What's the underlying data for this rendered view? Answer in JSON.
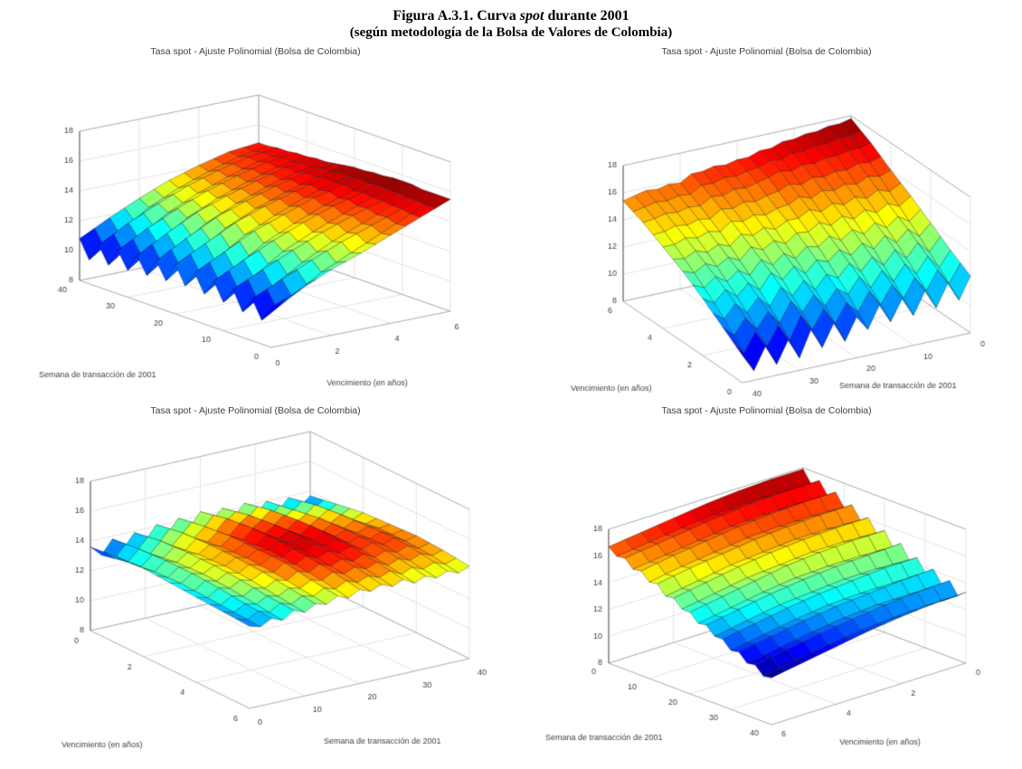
{
  "page": {
    "title_prefix": "Figura A.3.1. Curva ",
    "title_italic": "spot",
    "title_suffix": " durante 2001",
    "subtitle": "(según metodología de la Bolsa de Valores de Colombia)"
  },
  "chart_data": [
    {
      "type": "surface",
      "position": "top-left",
      "title": "Tasa spot - Ajuste Polinomial (Bolsa de Colombia)",
      "xlabel": "Semana de transacción de 2001",
      "ylabel": "Vencimiento (en años)",
      "colormap": "jet",
      "x_range": [
        0,
        40
      ],
      "y_range": [
        0,
        6
      ],
      "z_range": [
        8,
        18
      ],
      "x_ticks": [
        0,
        10,
        20,
        30,
        40
      ],
      "y_ticks": [
        0,
        2,
        4,
        6
      ],
      "z_ticks": [
        8,
        10,
        12,
        14,
        16,
        18
      ],
      "view_front_corner": {
        "week": 0,
        "maturity": 0
      },
      "weeks": [
        0,
        2,
        4,
        6,
        8,
        10,
        12,
        14,
        16,
        18,
        20,
        22,
        24,
        26,
        28,
        30,
        32,
        34,
        36,
        38,
        40
      ],
      "maturities": [
        0,
        1,
        2,
        3,
        4,
        5,
        6
      ],
      "z_grid": [
        [
          10.7,
          11.5,
          12.4,
          13.1,
          13.9,
          14.7,
          15.5
        ],
        [
          9.6,
          10.8,
          12.0,
          12.9,
          13.8,
          14.7,
          15.5
        ],
        [
          10.8,
          11.7,
          12.6,
          13.4,
          14.1,
          14.8,
          15.5
        ],
        [
          9.7,
          11.0,
          12.2,
          13.2,
          14.0,
          14.8,
          15.5
        ],
        [
          11.0,
          11.9,
          12.8,
          13.6,
          14.3,
          14.9,
          15.6
        ],
        [
          9.9,
          11.2,
          12.5,
          13.4,
          14.2,
          14.9,
          15.6
        ],
        [
          11.1,
          12.1,
          13.0,
          13.8,
          14.5,
          15.0,
          15.6
        ],
        [
          10.0,
          11.3,
          12.6,
          13.5,
          14.3,
          14.9,
          15.5
        ],
        [
          11.2,
          12.2,
          13.2,
          13.9,
          14.6,
          15.1,
          15.5
        ],
        [
          10.1,
          11.4,
          12.7,
          13.6,
          14.4,
          15.0,
          15.4
        ],
        [
          11.3,
          12.3,
          13.3,
          14.0,
          14.6,
          15.1,
          15.4
        ],
        [
          10.0,
          11.4,
          12.7,
          13.6,
          14.3,
          14.9,
          15.3
        ],
        [
          11.1,
          12.2,
          13.2,
          13.9,
          14.5,
          15.0,
          15.2
        ],
        [
          9.9,
          11.3,
          12.6,
          13.5,
          14.2,
          14.8,
          15.1
        ],
        [
          11.0,
          12.1,
          13.1,
          13.8,
          14.4,
          14.9,
          15.1
        ],
        [
          9.8,
          11.2,
          12.5,
          13.4,
          14.1,
          14.7,
          15.0
        ],
        [
          10.9,
          12.0,
          12.9,
          13.7,
          14.3,
          14.8,
          15.0
        ],
        [
          9.7,
          11.1,
          12.4,
          13.3,
          14.0,
          14.6,
          14.9
        ],
        [
          10.8,
          11.9,
          12.8,
          13.6,
          14.2,
          14.7,
          14.9
        ],
        [
          9.6,
          11.0,
          12.3,
          13.2,
          13.9,
          14.5,
          14.8
        ],
        [
          10.8,
          11.8,
          12.7,
          13.5,
          14.1,
          14.6,
          14.8
        ]
      ]
    },
    {
      "type": "surface",
      "position": "top-right",
      "title": "Tasa spot - Ajuste Polinomial (Bolsa de Colombia)",
      "xlabel": "Semana de transacción de 2001",
      "ylabel": "Vencimiento (en años)",
      "colormap": "jet",
      "x_range": [
        0,
        40
      ],
      "y_range": [
        0,
        6
      ],
      "z_range": [
        8,
        18
      ],
      "x_ticks": [
        0,
        10,
        20,
        30,
        40
      ],
      "y_ticks": [
        0,
        2,
        4,
        6
      ],
      "z_ticks": [
        8,
        10,
        12,
        14,
        16,
        18
      ],
      "view_front_corner": {
        "week": 40,
        "maturity": 0
      },
      "weeks": [
        0,
        2,
        4,
        6,
        8,
        10,
        12,
        14,
        16,
        18,
        20,
        22,
        24,
        26,
        28,
        30,
        32,
        34,
        36,
        38,
        40
      ],
      "maturities": [
        0,
        1,
        2,
        3,
        4,
        5,
        6
      ],
      "z_grid": [
        [
          12.2,
          13.1,
          14.1,
          15.1,
          16.0,
          17.0,
          17.8
        ],
        [
          10.6,
          12.0,
          13.3,
          14.5,
          15.7,
          16.8,
          17.6
        ],
        [
          12.0,
          13.0,
          14.0,
          14.9,
          15.9,
          16.8,
          17.6
        ],
        [
          10.4,
          11.9,
          13.2,
          14.4,
          15.5,
          16.6,
          17.4
        ],
        [
          11.8,
          12.8,
          13.9,
          14.8,
          15.7,
          16.6,
          17.4
        ],
        [
          10.2,
          11.7,
          13.1,
          14.3,
          15.4,
          16.4,
          17.2
        ],
        [
          11.6,
          12.7,
          13.7,
          14.7,
          15.6,
          16.5,
          17.2
        ],
        [
          10.1,
          11.6,
          13.0,
          14.2,
          15.2,
          16.2,
          16.9
        ],
        [
          11.5,
          12.6,
          13.6,
          14.6,
          15.5,
          16.4,
          16.9
        ],
        [
          9.9,
          11.5,
          12.9,
          14.1,
          15.1,
          16.1,
          16.6
        ],
        [
          11.0,
          12.1,
          13.2,
          14.2,
          15.0,
          15.9,
          16.6
        ],
        [
          9.4,
          11.0,
          12.4,
          13.6,
          14.7,
          15.7,
          16.4
        ],
        [
          10.9,
          12.0,
          13.1,
          14.0,
          14.9,
          15.8,
          16.5
        ],
        [
          9.3,
          10.9,
          12.3,
          13.5,
          14.6,
          15.5,
          16.3
        ],
        [
          10.8,
          11.9,
          13.0,
          13.9,
          14.8,
          15.6,
          16.3
        ],
        [
          8.9,
          10.5,
          11.9,
          13.1,
          14.2,
          15.1,
          15.8
        ],
        [
          10.4,
          11.5,
          12.6,
          13.5,
          14.4,
          15.2,
          15.9
        ],
        [
          8.8,
          10.4,
          11.8,
          13.0,
          14.1,
          15.0,
          15.7
        ],
        [
          10.3,
          11.4,
          12.5,
          13.4,
          14.3,
          15.1,
          15.8
        ],
        [
          8.7,
          10.3,
          11.7,
          12.9,
          14.0,
          14.9,
          15.6
        ],
        [
          10.0,
          11.1,
          12.2,
          13.2,
          14.0,
          14.8,
          15.4
        ]
      ]
    },
    {
      "type": "surface",
      "position": "bottom-left",
      "title": "Tasa spot - Ajuste Polinomial (Bolsa de Colombia)",
      "xlabel": "Semana de transacción de 2001",
      "ylabel": "Vencimiento (en años)",
      "colormap": "jet",
      "x_range": [
        0,
        40
      ],
      "y_range": [
        0,
        6
      ],
      "z_range": [
        8,
        18
      ],
      "x_ticks": [
        0,
        10,
        20,
        30,
        40
      ],
      "y_ticks": [
        0,
        2,
        4,
        6
      ],
      "z_ticks": [
        8,
        10,
        12,
        14,
        16,
        18
      ],
      "view_front_corner": {
        "week": 0,
        "maturity": 6
      },
      "weeks": [
        0,
        2,
        4,
        6,
        8,
        10,
        12,
        14,
        16,
        18,
        20,
        22,
        24,
        26,
        28,
        30,
        32,
        34,
        36,
        38,
        40
      ],
      "maturities": [
        0,
        1,
        2,
        3,
        4,
        5,
        6
      ],
      "z_grid": [
        [
          13.6,
          13.8,
          13.9,
          13.8,
          13.7,
          13.6,
          13.5
        ],
        [
          12.9,
          13.3,
          13.5,
          13.6,
          13.5,
          13.4,
          13.3
        ],
        [
          13.8,
          14.0,
          14.1,
          14.1,
          14.0,
          13.8,
          13.7
        ],
        [
          13.0,
          13.5,
          13.8,
          13.9,
          13.8,
          13.6,
          13.4
        ],
        [
          13.9,
          14.2,
          14.3,
          14.3,
          14.2,
          14.0,
          13.9
        ],
        [
          13.2,
          13.7,
          14.0,
          14.1,
          14.0,
          13.8,
          13.6
        ],
        [
          14.1,
          14.4,
          14.5,
          14.5,
          14.4,
          14.2,
          14.0
        ],
        [
          13.3,
          13.9,
          14.2,
          14.3,
          14.2,
          14.0,
          13.8
        ],
        [
          14.2,
          14.5,
          14.7,
          14.7,
          14.7,
          14.4,
          14.2
        ],
        [
          13.4,
          14.0,
          14.3,
          14.5,
          14.4,
          14.2,
          13.9
        ],
        [
          14.3,
          14.7,
          14.9,
          14.9,
          14.8,
          14.6,
          14.3
        ],
        [
          13.5,
          14.1,
          14.4,
          14.6,
          14.5,
          14.3,
          14.0
        ],
        [
          14.2,
          14.6,
          14.8,
          14.9,
          14.8,
          14.6,
          14.3
        ],
        [
          13.4,
          14.0,
          14.3,
          14.5,
          14.5,
          14.3,
          14.0
        ],
        [
          14.2,
          14.6,
          14.8,
          14.9,
          14.8,
          14.6,
          14.3
        ],
        [
          13.2,
          13.8,
          14.2,
          14.4,
          14.4,
          14.2,
          13.9
        ],
        [
          14.0,
          14.3,
          14.6,
          14.7,
          14.7,
          14.5,
          14.2
        ],
        [
          13.1,
          13.7,
          14.1,
          14.3,
          14.4,
          14.2,
          13.9
        ],
        [
          13.9,
          14.3,
          14.5,
          14.6,
          14.7,
          14.5,
          14.2
        ],
        [
          13.1,
          13.6,
          14.0,
          14.3,
          14.3,
          14.2,
          13.9
        ],
        [
          13.7,
          14.0,
          14.3,
          14.4,
          14.5,
          14.4,
          14.2
        ]
      ]
    },
    {
      "type": "surface",
      "position": "bottom-right",
      "title": "Tasa spot - Ajuste Polinomial (Bolsa de Colombia)",
      "xlabel": "Semana de transacción de 2001",
      "ylabel": "Vencimiento (en años)",
      "colormap": "jet",
      "x_range": [
        0,
        40
      ],
      "y_range": [
        0,
        6
      ],
      "z_range": [
        8,
        18
      ],
      "x_ticks": [
        0,
        10,
        20,
        30,
        40
      ],
      "y_ticks": [
        0,
        2,
        4,
        6
      ],
      "z_ticks": [
        8,
        10,
        12,
        14,
        16,
        18
      ],
      "view_front_corner": {
        "week": 40,
        "maturity": 6
      },
      "weeks": [
        0,
        2,
        4,
        6,
        8,
        10,
        12,
        14,
        16,
        18,
        20,
        22,
        24,
        26,
        28,
        30,
        32,
        34,
        36,
        38,
        40
      ],
      "maturities": [
        0,
        1,
        2,
        3,
        4,
        5,
        6
      ],
      "z_grid": [
        [
          17.9,
          17.9,
          17.8,
          17.6,
          17.3,
          17.0,
          16.7
        ],
        [
          17.0,
          17.1,
          17.1,
          17.0,
          16.8,
          16.5,
          16.2
        ],
        [
          17.5,
          17.5,
          17.4,
          17.2,
          16.9,
          16.6,
          16.3
        ],
        [
          16.6,
          16.7,
          16.7,
          16.6,
          16.3,
          16.0,
          15.7
        ],
        [
          17.1,
          17.1,
          17.0,
          16.8,
          16.5,
          16.2,
          15.8
        ],
        [
          16.2,
          16.3,
          16.3,
          16.2,
          15.9,
          15.6,
          15.2
        ],
        [
          16.6,
          16.6,
          16.5,
          16.3,
          16.0,
          15.7,
          15.3
        ],
        [
          15.7,
          15.8,
          15.8,
          15.6,
          15.4,
          15.0,
          14.6
        ],
        [
          16.1,
          16.1,
          16.0,
          15.8,
          15.5,
          15.1,
          14.7
        ],
        [
          15.2,
          15.3,
          15.3,
          15.1,
          14.9,
          14.5,
          14.1
        ],
        [
          15.6,
          15.6,
          15.5,
          15.3,
          14.9,
          14.5,
          14.1
        ],
        [
          14.6,
          14.7,
          14.7,
          14.6,
          14.3,
          13.9,
          13.5
        ],
        [
          15.1,
          15.0,
          14.9,
          14.7,
          14.4,
          14.0,
          13.6
        ],
        [
          14.1,
          14.2,
          14.2,
          14.0,
          13.8,
          13.4,
          13.0
        ],
        [
          14.5,
          14.5,
          14.3,
          14.1,
          13.8,
          13.4,
          13.0
        ],
        [
          13.6,
          13.6,
          13.6,
          13.5,
          13.2,
          12.8,
          12.4
        ],
        [
          14.1,
          14.0,
          13.8,
          13.6,
          13.3,
          12.9,
          12.5
        ],
        [
          13.2,
          13.2,
          13.2,
          13.0,
          12.7,
          12.3,
          11.9
        ],
        [
          13.7,
          13.6,
          13.4,
          13.1,
          12.8,
          12.4,
          12.0
        ],
        [
          12.8,
          12.8,
          12.7,
          12.5,
          12.2,
          11.8,
          11.4
        ],
        [
          13.3,
          13.2,
          13.0,
          12.7,
          12.3,
          11.9,
          11.5
        ]
      ]
    }
  ]
}
